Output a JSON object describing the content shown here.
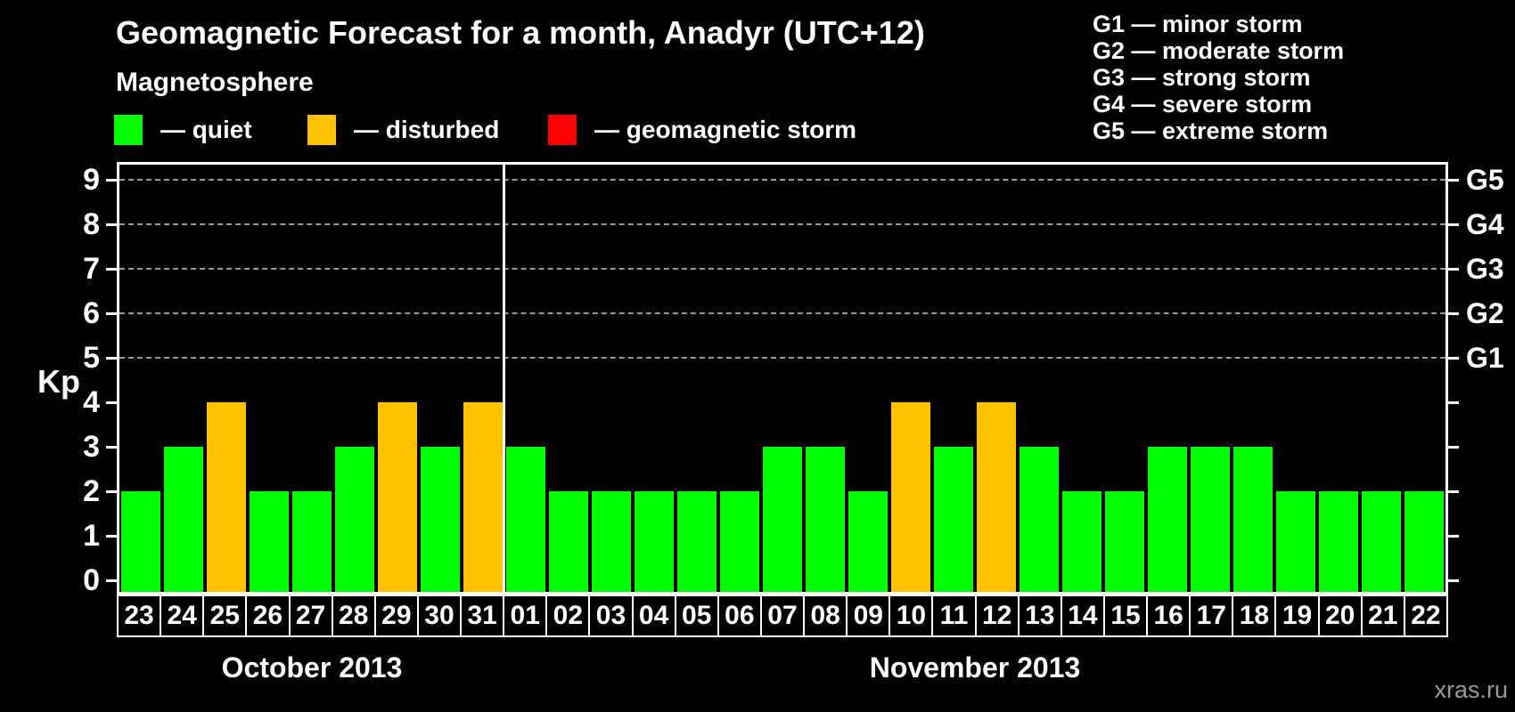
{
  "title": "Geomagnetic Forecast for a month, Anadyr (UTC+12)",
  "subtitle": "Magnetosphere",
  "status_legend": [
    {
      "name": "quiet",
      "label": "— quiet",
      "color": "#00ff00"
    },
    {
      "name": "disturbed",
      "label": "— disturbed",
      "color": "#ffc200"
    },
    {
      "name": "storm",
      "label": "— geomagnetic storm",
      "color": "#ff0000"
    }
  ],
  "g_scale_legend": [
    "G1 — minor storm",
    "G2 — moderate storm",
    "G3 — strong storm",
    "G4 — severe storm",
    "G5 — extreme storm"
  ],
  "watermark": "xras.ru",
  "chart_data": {
    "type": "bar",
    "title": "Geomagnetic Forecast for a month, Anadyr (UTC+12)",
    "ylabel": "Kp",
    "ylim": [
      0,
      9
    ],
    "yticks": [
      0,
      1,
      2,
      3,
      4,
      5,
      6,
      7,
      8,
      9
    ],
    "grid_levels_kp": [
      5,
      6,
      7,
      8,
      9
    ],
    "grid_style": "dashed",
    "right_axis_labels": [
      {
        "label": "G1",
        "kp": 5
      },
      {
        "label": "G2",
        "kp": 6
      },
      {
        "label": "G3",
        "kp": 7
      },
      {
        "label": "G4",
        "kp": 8
      },
      {
        "label": "G5",
        "kp": 9
      }
    ],
    "colors": {
      "quiet": "#00ff00",
      "disturbed": "#ffc200",
      "storm": "#ff0000"
    },
    "months": [
      {
        "label": "October 2013",
        "days": 9
      },
      {
        "label": "November 2013",
        "days": 22
      }
    ],
    "days": [
      {
        "day": "23",
        "kp": 2,
        "status": "quiet"
      },
      {
        "day": "24",
        "kp": 3,
        "status": "quiet"
      },
      {
        "day": "25",
        "kp": 4,
        "status": "disturbed"
      },
      {
        "day": "26",
        "kp": 2,
        "status": "quiet"
      },
      {
        "day": "27",
        "kp": 2,
        "status": "quiet"
      },
      {
        "day": "28",
        "kp": 3,
        "status": "quiet"
      },
      {
        "day": "29",
        "kp": 4,
        "status": "disturbed"
      },
      {
        "day": "30",
        "kp": 3,
        "status": "quiet"
      },
      {
        "day": "31",
        "kp": 4,
        "status": "disturbed"
      },
      {
        "day": "01",
        "kp": 3,
        "status": "quiet"
      },
      {
        "day": "02",
        "kp": 2,
        "status": "quiet"
      },
      {
        "day": "03",
        "kp": 2,
        "status": "quiet"
      },
      {
        "day": "04",
        "kp": 2,
        "status": "quiet"
      },
      {
        "day": "05",
        "kp": 2,
        "status": "quiet"
      },
      {
        "day": "06",
        "kp": 2,
        "status": "quiet"
      },
      {
        "day": "07",
        "kp": 3,
        "status": "quiet"
      },
      {
        "day": "08",
        "kp": 3,
        "status": "quiet"
      },
      {
        "day": "09",
        "kp": 2,
        "status": "quiet"
      },
      {
        "day": "10",
        "kp": 4,
        "status": "disturbed"
      },
      {
        "day": "11",
        "kp": 3,
        "status": "quiet"
      },
      {
        "day": "12",
        "kp": 4,
        "status": "disturbed"
      },
      {
        "day": "13",
        "kp": 3,
        "status": "quiet"
      },
      {
        "day": "14",
        "kp": 2,
        "status": "quiet"
      },
      {
        "day": "15",
        "kp": 2,
        "status": "quiet"
      },
      {
        "day": "16",
        "kp": 3,
        "status": "quiet"
      },
      {
        "day": "17",
        "kp": 3,
        "status": "quiet"
      },
      {
        "day": "18",
        "kp": 3,
        "status": "quiet"
      },
      {
        "day": "19",
        "kp": 2,
        "status": "quiet"
      },
      {
        "day": "20",
        "kp": 2,
        "status": "quiet"
      },
      {
        "day": "21",
        "kp": 2,
        "status": "quiet"
      },
      {
        "day": "22",
        "kp": 2,
        "status": "quiet"
      }
    ]
  }
}
